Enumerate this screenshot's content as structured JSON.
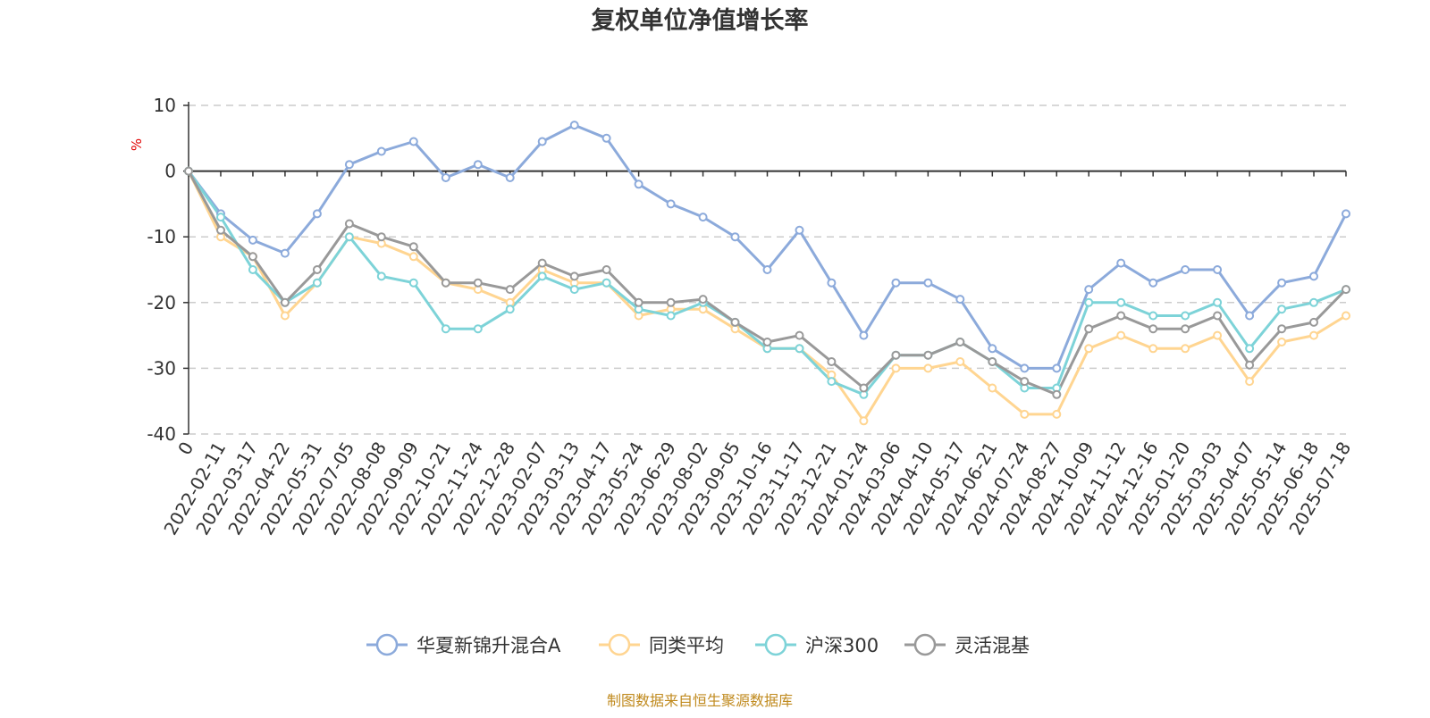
{
  "chart_data": {
    "type": "line",
    "title": "复权单位净值增长率",
    "ylabel": "%",
    "ylim": [
      -40,
      10
    ],
    "yticks": [
      -40,
      -30,
      -20,
      -10,
      0,
      10
    ],
    "grid": true,
    "legend_position": "bottom-center",
    "x_first_label": "0",
    "x_date_labels": [
      "2022-02-11",
      "2022-03-17",
      "2022-04-22",
      "2022-05-31",
      "2022-07-05",
      "2022-08-08",
      "2022-09-09",
      "2022-10-21",
      "2022-11-24",
      "2022-12-28",
      "2023-02-07",
      "2023-03-13",
      "2023-04-17",
      "2023-05-24",
      "2023-06-29",
      "2023-08-02",
      "2023-09-05",
      "2023-10-16",
      "2023-11-17",
      "2023-12-21",
      "2024-01-24",
      "2024-03-06",
      "2024-04-10",
      "2024-05-17",
      "2024-06-21",
      "2024-07-24",
      "2024-08-27",
      "2024-10-09",
      "2024-11-12",
      "2024-12-16",
      "2025-01-20",
      "2025-03-03",
      "2025-04-07",
      "2025-05-14",
      "2025-06-18",
      "2025-07-18"
    ],
    "x": [
      "0",
      "2022-02-11",
      "2022-03-17",
      "2022-04-22",
      "2022-05-31",
      "2022-07-05",
      "2022-08-08",
      "2022-09-09",
      "2022-10-21",
      "2022-11-24",
      "2022-12-28",
      "2023-02-07",
      "2023-03-13",
      "2023-04-17",
      "2023-05-24",
      "2023-06-29",
      "2023-08-02",
      "2023-09-05",
      "2023-10-16",
      "2023-11-17",
      "2023-12-21",
      "2024-01-24",
      "2024-03-06",
      "2024-04-10",
      "2024-05-17",
      "2024-06-21",
      "2024-07-24",
      "2024-08-27",
      "2024-10-09",
      "2024-11-12",
      "2024-12-16",
      "2025-01-20",
      "2025-03-03",
      "2025-04-07",
      "2025-05-14",
      "2025-06-18",
      "2025-07-18"
    ],
    "series": [
      {
        "name": "华夏新锦升混合A",
        "color": "#8caadb",
        "values": [
          0,
          -6.5,
          -10.5,
          -12.5,
          -6.5,
          1,
          3,
          4.5,
          -1,
          1,
          -1,
          4.5,
          7,
          5,
          -2,
          -5,
          -7,
          -10,
          -15,
          -9,
          -17,
          -25,
          -17,
          -17,
          -19.5,
          -27,
          -30,
          -30,
          -18,
          -14,
          -17,
          -15,
          -15,
          -22,
          -17,
          -16,
          -6.5
        ]
      },
      {
        "name": "同类平均",
        "color": "#ffd591",
        "values": [
          0,
          -10,
          -13,
          -22,
          -17,
          -10,
          -11,
          -13,
          -17,
          -18,
          -20,
          -15,
          -17,
          -17,
          -22,
          -21,
          -21,
          -24,
          -27,
          -27,
          -31,
          -38,
          -30,
          -30,
          -29,
          -33,
          -37,
          -37,
          -27,
          -25,
          -27,
          -27,
          -25,
          -32,
          -26,
          -25,
          -22
        ]
      },
      {
        "name": "沪深300",
        "color": "#7dd3d8",
        "values": [
          0,
          -7,
          -15,
          -20,
          -17,
          -10,
          -16,
          -17,
          -24,
          -24,
          -21,
          -16,
          -18,
          -17,
          -21,
          -22,
          -20,
          -23,
          -27,
          -27,
          -32,
          -34,
          -28,
          -28,
          -26,
          -29,
          -33,
          -33,
          -20,
          -20,
          -22,
          -22,
          -20,
          -27,
          -21,
          -20,
          -18
        ]
      },
      {
        "name": "灵活混基",
        "color": "#999999",
        "values": [
          0,
          -9,
          -13,
          -20,
          -15,
          -8,
          -10,
          -11.5,
          -17,
          -17,
          -18,
          -14,
          -16,
          -15,
          -20,
          -20,
          -19.5,
          -23,
          -26,
          -25,
          -29,
          -33,
          -28,
          -28,
          -26,
          -29,
          -32,
          -34,
          -24,
          -22,
          -24,
          -24,
          -22,
          -29.5,
          -24,
          -23,
          -18
        ]
      }
    ]
  },
  "source_note": "制图数据来自恒生聚源数据库"
}
